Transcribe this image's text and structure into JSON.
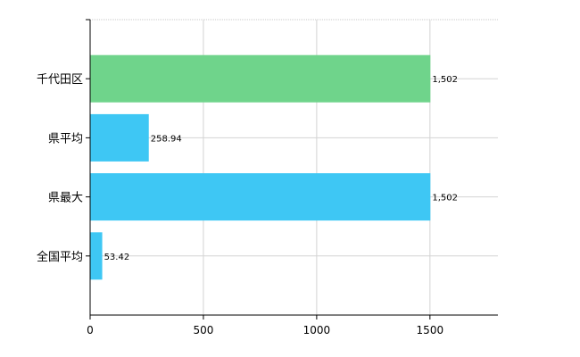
{
  "chart_data": {
    "type": "bar",
    "orientation": "horizontal",
    "categories": [
      "千代田区",
      "県平均",
      "県最大",
      "全国平均"
    ],
    "values": [
      1502,
      258.94,
      1502,
      53.42
    ],
    "value_labels": [
      "1,502",
      "258.94",
      "1,502",
      "53.42"
    ],
    "bar_colors": [
      "#6fd48b",
      "#3ec7f4",
      "#3ec7f4",
      "#3ec7f4"
    ],
    "xlim": [
      0,
      1800
    ],
    "x_ticks": [
      0,
      500,
      1000,
      1500
    ],
    "grid": true,
    "title": "",
    "xlabel": "",
    "ylabel": ""
  }
}
